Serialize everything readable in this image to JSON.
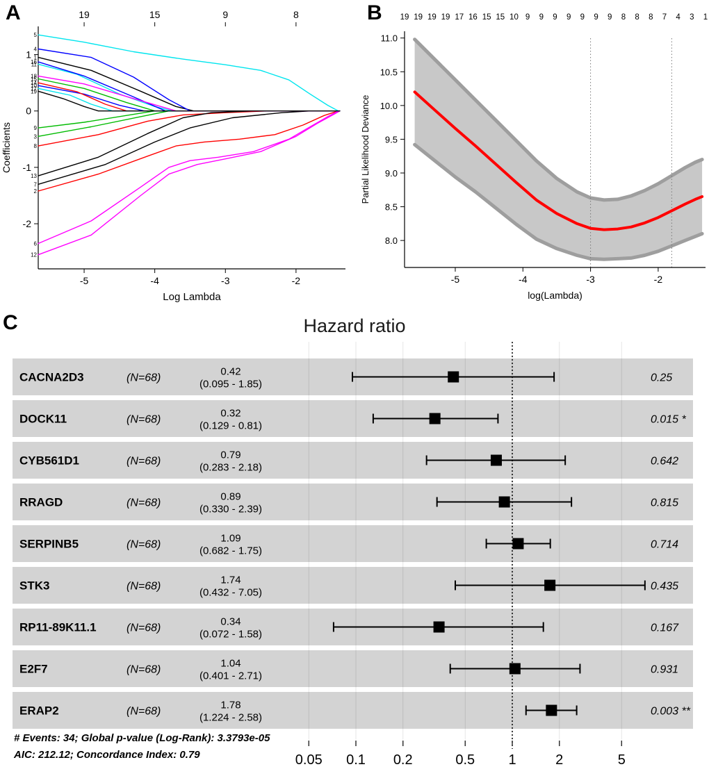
{
  "figure": {
    "panel_labels": {
      "a": "A",
      "b": "B",
      "c": "C"
    }
  },
  "chart_data": [
    {
      "id": "lasso-coefficient-paths",
      "type": "line",
      "panel": "A",
      "xlabel": "Log Lambda",
      "ylabel": "Coefficients",
      "xlim": [
        -5.65,
        -1.3
      ],
      "ylim": [
        -2.8,
        1.5
      ],
      "xticks": [
        -5,
        -4,
        -3,
        -2
      ],
      "yticks": [
        -2,
        -1,
        0,
        1
      ],
      "top_axis": {
        "ticks": [
          -5,
          -4,
          -3,
          -2
        ],
        "labels": [
          "19",
          "15",
          "9",
          "8"
        ]
      },
      "series": [
        {
          "label": "1",
          "color": "#000000",
          "points": [
            [
              -5.65,
              0.95
            ],
            [
              -4.9,
              0.72
            ],
            [
              -4.2,
              0.35
            ],
            [
              -3.7,
              0.08
            ],
            [
              -3.45,
              0
            ],
            [
              -1.38,
              0
            ]
          ]
        },
        {
          "label": "2",
          "color": "#ff0000",
          "points": [
            [
              -5.65,
              -1.42
            ],
            [
              -4.8,
              -1.12
            ],
            [
              -4.1,
              -0.8
            ],
            [
              -3.7,
              -0.62
            ],
            [
              -3.3,
              -0.55
            ],
            [
              -2.8,
              -0.5
            ],
            [
              -2.3,
              -0.42
            ],
            [
              -1.9,
              -0.25
            ],
            [
              -1.6,
              -0.08
            ],
            [
              -1.4,
              0
            ]
          ]
        },
        {
          "label": "3",
          "color": "#00bb00",
          "points": [
            [
              -5.65,
              -0.45
            ],
            [
              -4.9,
              -0.28
            ],
            [
              -4.2,
              -0.1
            ],
            [
              -3.8,
              0
            ],
            [
              -1.38,
              0
            ]
          ]
        },
        {
          "label": "4",
          "color": "#0000ff",
          "points": [
            [
              -5.65,
              1.1
            ],
            [
              -4.9,
              0.95
            ],
            [
              -4.3,
              0.6
            ],
            [
              -3.8,
              0.2
            ],
            [
              -3.5,
              0
            ],
            [
              -1.38,
              0
            ]
          ]
        },
        {
          "label": "5",
          "color": "#00e5ee",
          "points": [
            [
              -5.65,
              1.35
            ],
            [
              -5.0,
              1.22
            ],
            [
              -4.3,
              1.05
            ],
            [
              -3.6,
              0.92
            ],
            [
              -3.0,
              0.82
            ],
            [
              -2.5,
              0.72
            ],
            [
              -2.1,
              0.55
            ],
            [
              -1.8,
              0.3
            ],
            [
              -1.55,
              0.1
            ],
            [
              -1.4,
              0
            ]
          ]
        },
        {
          "label": "6",
          "color": "#ff00ff",
          "points": [
            [
              -5.65,
              -2.35
            ],
            [
              -4.9,
              -1.95
            ],
            [
              -4.2,
              -1.35
            ],
            [
              -3.8,
              -1.0
            ],
            [
              -3.5,
              -0.88
            ],
            [
              -3.1,
              -0.82
            ],
            [
              -2.6,
              -0.72
            ],
            [
              -2.1,
              -0.5
            ],
            [
              -1.8,
              -0.28
            ],
            [
              -1.55,
              -0.1
            ],
            [
              -1.4,
              0
            ]
          ]
        },
        {
          "label": "7",
          "color": "#000000",
          "points": [
            [
              -5.65,
              -1.3
            ],
            [
              -4.7,
              -0.95
            ],
            [
              -4.0,
              -0.55
            ],
            [
              -3.5,
              -0.3
            ],
            [
              -2.9,
              -0.12
            ],
            [
              -2.2,
              -0.03
            ],
            [
              -1.8,
              0
            ],
            [
              -1.38,
              0
            ]
          ]
        },
        {
          "label": "8",
          "color": "#ff0000",
          "points": [
            [
              -5.65,
              -0.62
            ],
            [
              -4.8,
              -0.42
            ],
            [
              -4.1,
              -0.18
            ],
            [
              -3.6,
              -0.07
            ],
            [
              -3.0,
              -0.03
            ],
            [
              -2.4,
              0
            ],
            [
              -1.38,
              0
            ]
          ]
        },
        {
          "label": "9",
          "color": "#00bb00",
          "points": [
            [
              -5.65,
              -0.3
            ],
            [
              -5.0,
              -0.2
            ],
            [
              -4.4,
              -0.08
            ],
            [
              -4.0,
              0
            ],
            [
              -1.38,
              0
            ]
          ]
        },
        {
          "label": "10",
          "color": "#0000ff",
          "points": [
            [
              -5.65,
              0.45
            ],
            [
              -5.0,
              0.3
            ],
            [
              -4.5,
              0.1
            ],
            [
              -4.15,
              0
            ],
            [
              -1.38,
              0
            ]
          ]
        },
        {
          "label": "11",
          "color": "#00e5ee",
          "points": [
            [
              -5.65,
              0.83
            ],
            [
              -5.1,
              0.65
            ],
            [
              -4.5,
              0.3
            ],
            [
              -4.0,
              0.08
            ],
            [
              -3.75,
              0
            ],
            [
              -1.38,
              0
            ]
          ]
        },
        {
          "label": "12",
          "color": "#ff00ff",
          "points": [
            [
              -5.65,
              -2.55
            ],
            [
              -4.9,
              -2.2
            ],
            [
              -4.2,
              -1.5
            ],
            [
              -3.8,
              -1.12
            ],
            [
              -3.4,
              -0.95
            ],
            [
              -3.0,
              -0.85
            ],
            [
              -2.5,
              -0.72
            ],
            [
              -2.0,
              -0.45
            ],
            [
              -1.7,
              -0.22
            ],
            [
              -1.45,
              -0.05
            ],
            [
              -1.38,
              0
            ]
          ]
        },
        {
          "label": "13",
          "color": "#000000",
          "points": [
            [
              -5.65,
              -1.15
            ],
            [
              -4.8,
              -0.82
            ],
            [
              -4.1,
              -0.4
            ],
            [
              -3.6,
              -0.12
            ],
            [
              -3.2,
              -0.03
            ],
            [
              -2.6,
              0
            ],
            [
              -1.38,
              0
            ]
          ]
        },
        {
          "label": "14",
          "color": "#ff0000",
          "points": [
            [
              -5.65,
              0.5
            ],
            [
              -5.1,
              0.34
            ],
            [
              -4.7,
              0.12
            ],
            [
              -4.4,
              0
            ],
            [
              -1.38,
              0
            ]
          ]
        },
        {
          "label": "15",
          "color": "#00bb00",
          "points": [
            [
              -5.65,
              0.57
            ],
            [
              -5.0,
              0.4
            ],
            [
              -4.4,
              0.15
            ],
            [
              -4.0,
              0
            ],
            [
              -1.38,
              0
            ]
          ]
        },
        {
          "label": "16",
          "color": "#0000ff",
          "points": [
            [
              -5.65,
              0.87
            ],
            [
              -5.0,
              0.62
            ],
            [
              -4.3,
              0.25
            ],
            [
              -3.85,
              0
            ],
            [
              -1.38,
              0
            ]
          ]
        },
        {
          "label": "17",
          "color": "#00e5ee",
          "points": [
            [
              -5.65,
              0.4
            ],
            [
              -5.2,
              0.28
            ],
            [
              -4.9,
              0.12
            ],
            [
              -4.6,
              0
            ],
            [
              -1.38,
              0
            ]
          ]
        },
        {
          "label": "18",
          "color": "#ff00ff",
          "points": [
            [
              -5.65,
              0.62
            ],
            [
              -5.0,
              0.48
            ],
            [
              -4.3,
              0.22
            ],
            [
              -3.7,
              0
            ],
            [
              -1.38,
              0
            ]
          ]
        },
        {
          "label": "19",
          "color": "#000000",
          "points": [
            [
              -5.65,
              0.35
            ],
            [
              -5.3,
              0.22
            ],
            [
              -5.0,
              0.08
            ],
            [
              -4.8,
              0
            ],
            [
              -1.38,
              0
            ]
          ]
        }
      ]
    },
    {
      "id": "cv-partial-likelihood-deviance",
      "type": "line",
      "panel": "B",
      "xlabel": "log(Lambda)",
      "ylabel": "Partial Likelihood Deviance",
      "xlim": [
        -5.75,
        -1.3
      ],
      "ylim": [
        7.6,
        11.1
      ],
      "xticks": [
        -5,
        -4,
        -3,
        -2
      ],
      "yticks": [
        8.0,
        8.5,
        9.0,
        9.5,
        10.0,
        10.5,
        11.0
      ],
      "ytick_labels": [
        "8.0",
        "8.5",
        "9.0",
        "9.5",
        "10.0",
        "10.5",
        "11.0"
      ],
      "top_axis_labels": [
        "19",
        "19",
        "19",
        "19",
        "17",
        "16",
        "15",
        "15",
        "10",
        "9",
        "9",
        "9",
        "9",
        "9",
        "9",
        "9",
        "8",
        "8",
        "8",
        "7",
        "4",
        "3",
        "1"
      ],
      "vlines": [
        -3.0,
        -1.8
      ],
      "line_color": "#ff0000",
      "band_color": "#c8c8c8",
      "band_edge_color": "#9e9e9e",
      "x": [
        -5.6,
        -5.3,
        -5.0,
        -4.7,
        -4.4,
        -4.1,
        -3.8,
        -3.5,
        -3.2,
        -3.0,
        -2.8,
        -2.6,
        -2.4,
        -2.2,
        -2.0,
        -1.8,
        -1.6,
        -1.45,
        -1.35
      ],
      "mean": [
        10.2,
        9.93,
        9.66,
        9.4,
        9.13,
        8.86,
        8.6,
        8.4,
        8.25,
        8.18,
        8.16,
        8.17,
        8.2,
        8.26,
        8.34,
        8.44,
        8.54,
        8.61,
        8.65
      ],
      "upper": [
        10.98,
        10.68,
        10.38,
        10.08,
        9.78,
        9.48,
        9.18,
        8.92,
        8.72,
        8.63,
        8.6,
        8.61,
        8.66,
        8.74,
        8.84,
        8.96,
        9.08,
        9.16,
        9.2
      ],
      "lower": [
        9.42,
        9.18,
        8.94,
        8.72,
        8.48,
        8.24,
        8.02,
        7.88,
        7.78,
        7.73,
        7.72,
        7.73,
        7.74,
        7.78,
        7.84,
        7.92,
        8.0,
        8.06,
        8.1
      ]
    },
    {
      "id": "hazard-ratio-forest",
      "type": "forest",
      "panel": "C",
      "title": "Hazard ratio",
      "xscale": "log",
      "xticks": [
        0.05,
        0.1,
        0.2,
        0.5,
        1,
        2,
        5
      ],
      "xtick_labels": [
        "0.05",
        "0.1",
        "0.2",
        "0.5",
        "1",
        "2",
        "5"
      ],
      "reference_value": 1,
      "rows": [
        {
          "gene": "CACNA2D3",
          "n": "(N=68)",
          "estimate": "0.42",
          "ci_label": "(0.095 - 1.85)",
          "hr": 0.42,
          "ci_low": 0.095,
          "ci_high": 1.85,
          "p": "0.25"
        },
        {
          "gene": "DOCK11",
          "n": "(N=68)",
          "estimate": "0.32",
          "ci_label": "(0.129 - 0.81)",
          "hr": 0.32,
          "ci_low": 0.129,
          "ci_high": 0.81,
          "p": "0.015 *"
        },
        {
          "gene": "CYB561D1",
          "n": "(N=68)",
          "estimate": "0.79",
          "ci_label": "(0.283 - 2.18)",
          "hr": 0.79,
          "ci_low": 0.283,
          "ci_high": 2.18,
          "p": "0.642"
        },
        {
          "gene": "RRAGD",
          "n": "(N=68)",
          "estimate": "0.89",
          "ci_label": "(0.330 - 2.39)",
          "hr": 0.89,
          "ci_low": 0.33,
          "ci_high": 2.39,
          "p": "0.815"
        },
        {
          "gene": "SERPINB5",
          "n": "(N=68)",
          "estimate": "1.09",
          "ci_label": "(0.682 - 1.75)",
          "hr": 1.09,
          "ci_low": 0.682,
          "ci_high": 1.75,
          "p": "0.714"
        },
        {
          "gene": "STK3",
          "n": "(N=68)",
          "estimate": "1.74",
          "ci_label": "(0.432 - 7.05)",
          "hr": 1.74,
          "ci_low": 0.432,
          "ci_high": 7.05,
          "p": "0.435"
        },
        {
          "gene": "RP11-89K11.1",
          "n": "(N=68)",
          "estimate": "0.34",
          "ci_label": "(0.072 - 1.58)",
          "hr": 0.34,
          "ci_low": 0.072,
          "ci_high": 1.58,
          "p": "0.167"
        },
        {
          "gene": "E2F7",
          "n": "(N=68)",
          "estimate": "1.04",
          "ci_label": "(0.401 - 2.71)",
          "hr": 1.04,
          "ci_low": 0.401,
          "ci_high": 2.71,
          "p": "0.931"
        },
        {
          "gene": "ERAP2",
          "n": "(N=68)",
          "estimate": "1.78",
          "ci_label": "(1.224 - 2.58)",
          "hr": 1.78,
          "ci_low": 1.224,
          "ci_high": 2.58,
          "p": "0.003 **"
        }
      ],
      "row_band_color": "#d3d3d3",
      "footnotes": [
        "# Events: 34; Global p-value (Log-Rank): 3.3793e-05",
        "AIC: 212.12; Concordance Index: 0.79"
      ]
    }
  ]
}
